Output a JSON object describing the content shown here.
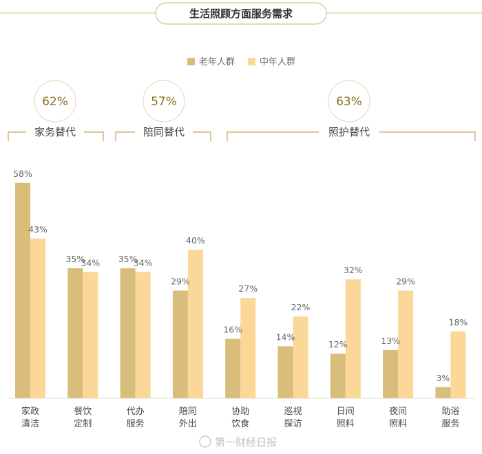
{
  "title": "生活照顾方面服务需求",
  "colors": {
    "elder": "#d9bd7b",
    "middle": "#fbd898",
    "accent": "#c9a24e",
    "text_dark": "#8a6d1e"
  },
  "groups": [
    {
      "label": "家务替代",
      "percent": "62%"
    },
    {
      "label": "陪同替代",
      "percent": "57%"
    },
    {
      "label": "照护替代",
      "percent": "63%"
    }
  ],
  "watermark": "第一财经日报",
  "chart_data": {
    "type": "bar",
    "title": "生活照顾方面服务需求",
    "legend_position": "top-center",
    "ylim": [
      0,
      60
    ],
    "categories": [
      [
        "家政",
        "清洁"
      ],
      [
        "餐饮",
        "定制"
      ],
      [
        "代办",
        "服务"
      ],
      [
        "陪同",
        "外出"
      ],
      [
        "协助",
        "饮食"
      ],
      [
        "巡视",
        "探访"
      ],
      [
        "日间",
        "照料"
      ],
      [
        "夜间",
        "照料"
      ],
      [
        "助浴",
        "服务"
      ]
    ],
    "series": [
      {
        "name": "老年人群",
        "values": [
          58,
          35,
          35,
          29,
          16,
          14,
          12,
          13,
          3
        ],
        "labels": [
          "58%",
          "35%",
          "35%",
          "29%",
          "16%",
          "14%",
          "12%",
          "13%",
          "3%"
        ]
      },
      {
        "name": "中年人群",
        "values": [
          43,
          34,
          34,
          40,
          27,
          22,
          32,
          29,
          18
        ],
        "labels": [
          "43%",
          "34%",
          "34%",
          "40%",
          "27%",
          "22%",
          "32%",
          "29%",
          "18%"
        ]
      }
    ]
  }
}
